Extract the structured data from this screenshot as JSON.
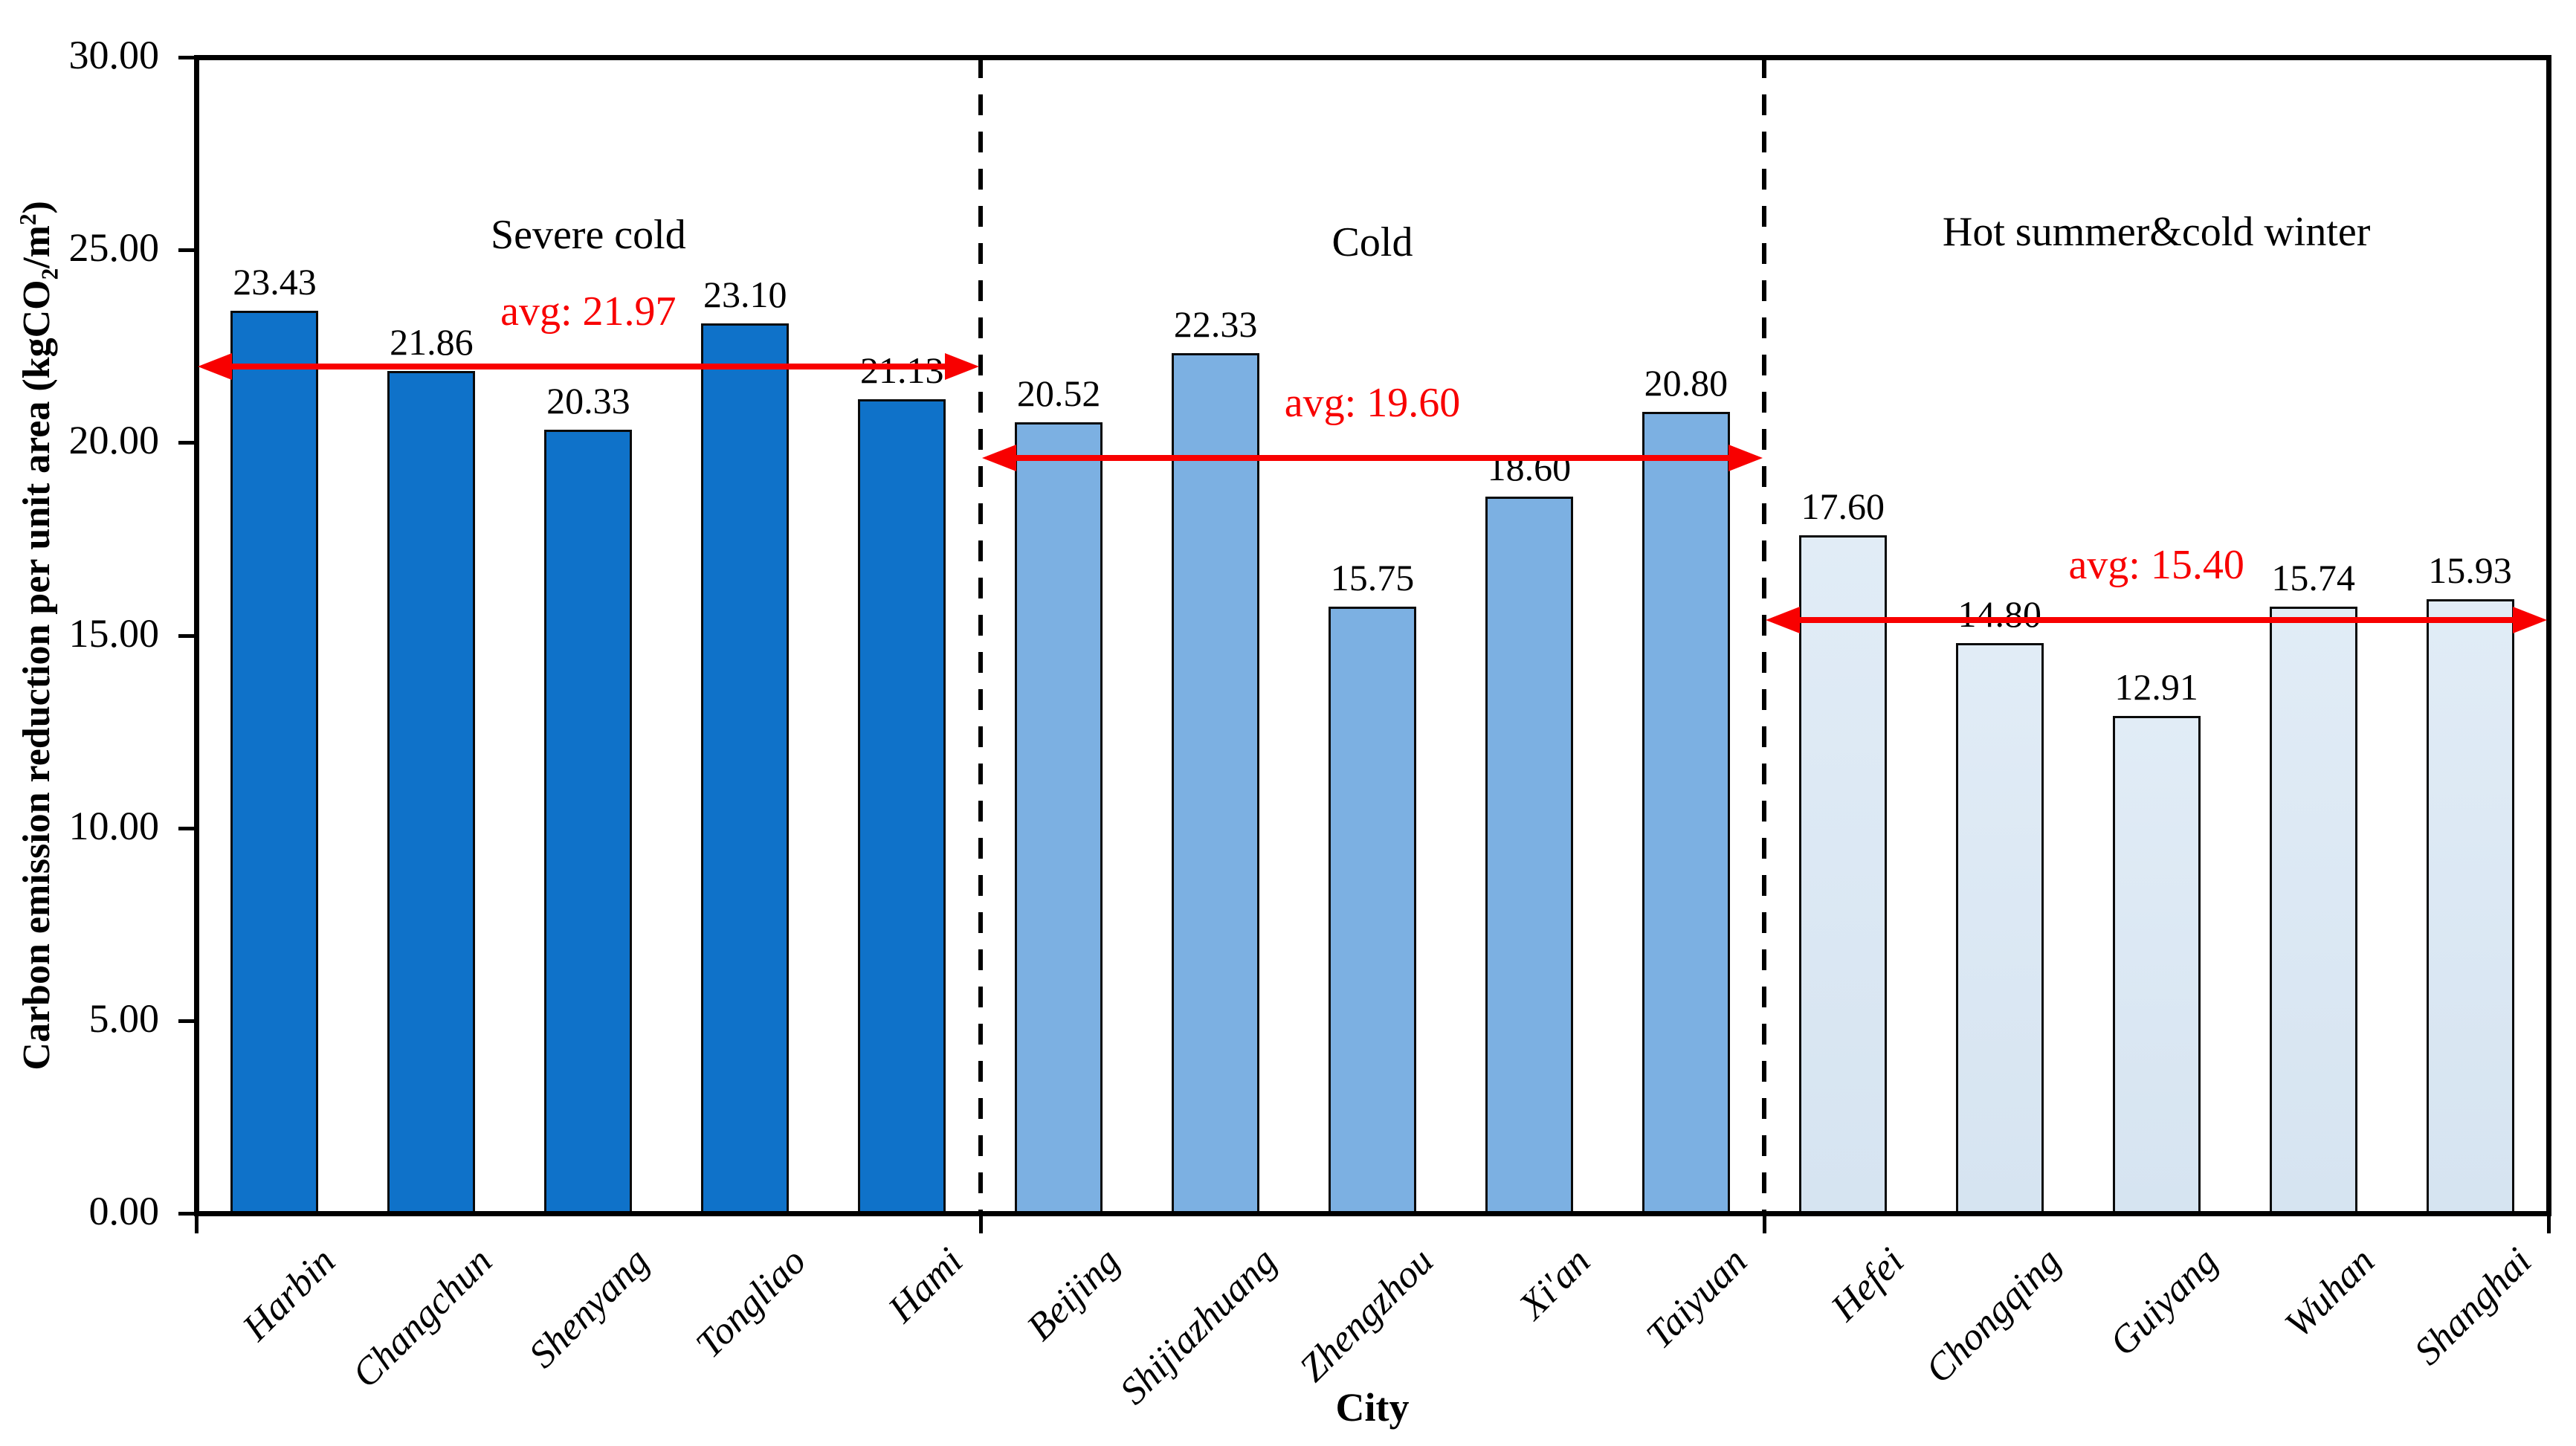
{
  "y_axis": {
    "title_pre": "Carbon emission reduction per unit area (kgCO",
    "title_sub": "2",
    "title_mid": "/m",
    "title_sup": "2",
    "title_post": ")"
  },
  "x_axis": {
    "title": "City"
  },
  "chart_data": {
    "type": "bar",
    "title": "",
    "xlabel": "City",
    "ylabel": "Carbon emission reduction per unit area (kgCO2/m2)",
    "ylim": [
      0,
      30
    ],
    "ytick_step": 5,
    "ytick_labels": [
      "0.00",
      "5.00",
      "10.00",
      "15.00",
      "20.00",
      "25.00",
      "30.00"
    ],
    "grid": "off",
    "legend": "none",
    "categories": [
      "Harbin",
      "Changchun",
      "Shenyang",
      "Tongliao",
      "Hami",
      "Beijing",
      "Shijiazhuang",
      "Zhengzhou",
      "Xi'an",
      "Taiyuan",
      "Hefei",
      "Chongqing",
      "Guiyang",
      "Wuhan",
      "Shanghai"
    ],
    "values": [
      23.43,
      21.86,
      20.33,
      23.1,
      21.13,
      20.52,
      22.33,
      15.75,
      18.6,
      20.8,
      17.6,
      14.8,
      12.91,
      15.74,
      15.93
    ],
    "value_labels": [
      "23.43",
      "21.86",
      "20.33",
      "23.10",
      "21.13",
      "20.52",
      "22.33",
      "15.75",
      "18.60",
      "20.80",
      "17.60",
      "14.80",
      "12.91",
      "15.74",
      "15.93"
    ],
    "groups": [
      {
        "label": "Severe cold",
        "avg": 21.97,
        "avg_label": "avg: 21.97",
        "start": 0,
        "end": 4,
        "bar_color": "#0F72C9"
      },
      {
        "label": "Cold",
        "avg": 19.6,
        "avg_label": "avg: 19.60",
        "start": 5,
        "end": 9,
        "bar_color": "#7CB0E2"
      },
      {
        "label": "Hot summer&cold winter",
        "avg": 15.4,
        "avg_label": "avg: 15.40",
        "start": 10,
        "end": 14,
        "bar_color": "#DCE9F5"
      }
    ],
    "style": {
      "accent_red": "#F80000",
      "bar_border": "#0a0a0a",
      "axis_color": "#000000",
      "severe_cold_blue": "#0F72C9",
      "cold_blue": "#7CB0E2",
      "hot_summer_blue": "#DCE9F5"
    }
  }
}
